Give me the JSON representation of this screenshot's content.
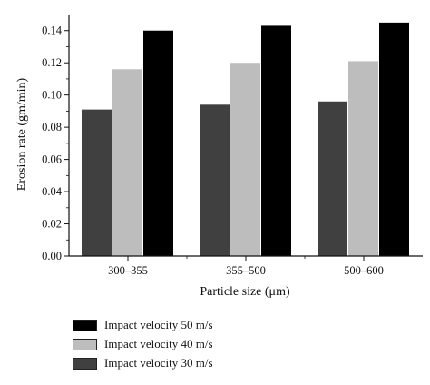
{
  "chart_data": {
    "type": "bar",
    "xlabel": "Particle size (μm)",
    "ylabel": "Erosion rate (gm/min)",
    "categories": [
      "300–355",
      "355–500",
      "500–600"
    ],
    "ylim": [
      0,
      0.15
    ],
    "yticks": [
      "0.00",
      "0.02",
      "0.04",
      "0.06",
      "0.08",
      "0.10",
      "0.12",
      "0.14"
    ],
    "grid": false,
    "legend_position": "bottom",
    "series": [
      {
        "name": "Impact velocity 30 m/s",
        "color": "#404040",
        "values": [
          0.091,
          0.094,
          0.096
        ]
      },
      {
        "name": "Impact velocity 40 m/s",
        "color": "#bdbdbd",
        "values": [
          0.116,
          0.12,
          0.121
        ]
      },
      {
        "name": "Impact velocity 50 m/s",
        "color": "#000000",
        "values": [
          0.14,
          0.143,
          0.145
        ]
      }
    ],
    "legend_order": [
      2,
      1,
      0
    ]
  }
}
